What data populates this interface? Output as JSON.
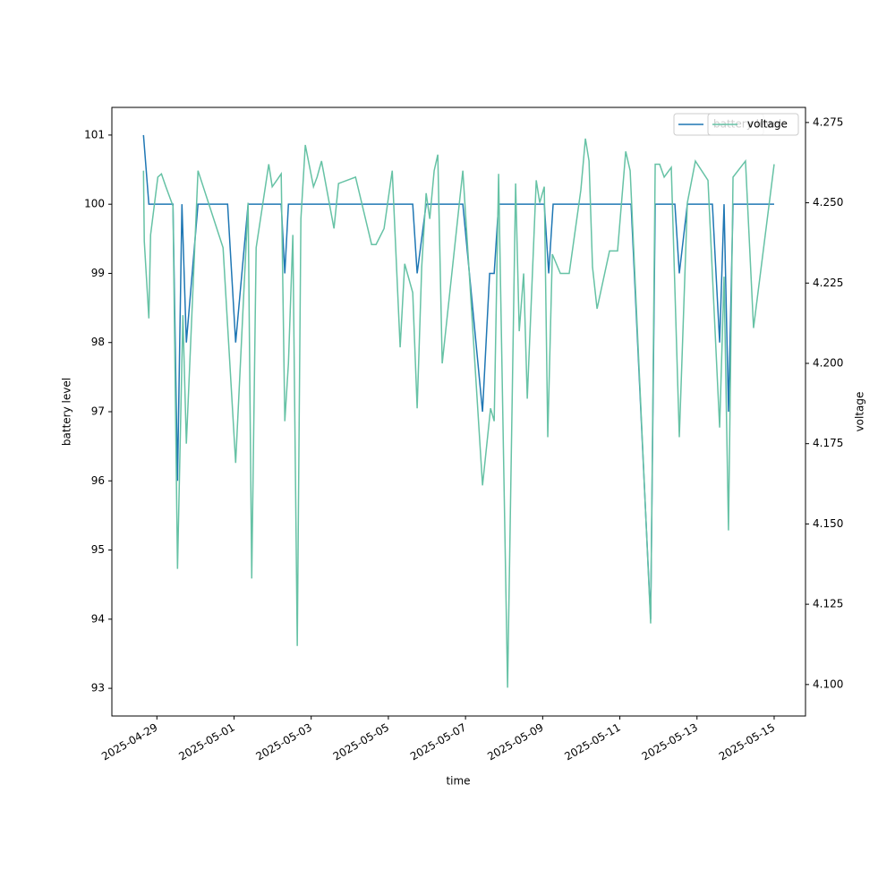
{
  "chart_data": {
    "type": "line",
    "xlabel": "time",
    "ylabel": "battery level",
    "y2label": "voltage",
    "xlim": [
      "2025-04-27T20:00",
      "2025-05-15T19:30"
    ],
    "xticks": [
      "2025-04-29",
      "2025-05-01",
      "2025-05-03",
      "2025-05-05",
      "2025-05-07",
      "2025-05-09",
      "2025-05-11",
      "2025-05-13",
      "2025-05-15"
    ],
    "ylim": [
      92.6,
      101.4
    ],
    "yticks": [
      93,
      94,
      95,
      96,
      97,
      98,
      99,
      100,
      101
    ],
    "y2lim": [
      4.0902,
      4.2797
    ],
    "y2ticks": [
      {
        "value": 4.1,
        "label": "4.100"
      },
      {
        "value": 4.125,
        "label": "4.125"
      },
      {
        "value": 4.15,
        "label": "4.150"
      },
      {
        "value": 4.175,
        "label": "4.175"
      },
      {
        "value": 4.2,
        "label": "4.200"
      },
      {
        "value": 4.225,
        "label": "4.225"
      },
      {
        "value": 4.25,
        "label": "4.250"
      },
      {
        "value": 4.275,
        "label": "4.275"
      }
    ],
    "legend": "upper right",
    "series": [
      {
        "name": "battery level",
        "color": "#1f77b4",
        "axis": "y",
        "x": [
          "2025-04-28T15:40",
          "2025-04-28T19:00",
          "2025-04-29T10:00",
          "2025-04-29T12:50",
          "2025-04-29T15:35",
          "2025-04-29T18:20",
          "2025-04-30T01:35",
          "2025-04-30T20:00",
          "2025-05-01T01:00",
          "2025-05-01T08:45",
          "2025-05-01T13:45",
          "2025-05-02T05:20",
          "2025-05-02T07:35",
          "2025-05-02T09:50",
          "2025-05-02T12:35",
          "2025-05-05T15:10",
          "2025-05-05T17:55",
          "2025-05-05T23:30",
          "2025-05-06T22:20",
          "2025-05-07T10:35",
          "2025-05-07T15:00",
          "2025-05-07T17:50",
          "2025-05-07T20:35",
          "2025-05-09T01:00",
          "2025-05-09T03:45",
          "2025-05-09T06:30",
          "2025-05-11T07:00",
          "2025-05-11T19:10",
          "2025-05-11T22:00",
          "2025-05-12T10:15",
          "2025-05-12T13:00",
          "2025-05-12T18:00",
          "2025-05-13T09:35",
          "2025-05-13T14:05",
          "2025-05-13T16:50",
          "2025-05-13T19:35",
          "2025-05-13T22:25",
          "2025-05-15T00:00"
        ],
        "values": [
          101,
          100,
          100,
          96,
          100,
          98,
          100,
          100,
          98,
          100,
          100,
          100,
          99,
          100,
          100,
          100,
          99,
          100,
          100,
          97,
          99,
          99,
          100,
          100,
          99,
          100,
          100,
          94,
          100,
          100,
          99,
          100,
          100,
          98,
          100,
          97,
          100,
          100
        ]
      },
      {
        "name": "voltage",
        "color": "#66c2a5",
        "axis": "y2",
        "x": [
          "2025-04-28T15:40",
          "2025-04-28T16:10",
          "2025-04-28T19:00",
          "2025-04-28T20:05",
          "2025-04-29T00:35",
          "2025-04-29T02:50",
          "2025-04-29T05:35",
          "2025-04-29T10:00",
          "2025-04-29T12:50",
          "2025-04-29T16:10",
          "2025-04-29T18:20",
          "2025-04-29T21:45",
          "2025-04-30T01:35",
          "2025-04-30T17:10",
          "2025-05-01T01:00",
          "2025-05-01T08:45",
          "2025-05-01T11:00",
          "2025-05-01T13:45",
          "2025-05-01T21:35",
          "2025-05-01T23:45",
          "2025-05-02T02:35",
          "2025-05-02T05:20",
          "2025-05-02T07:35",
          "2025-05-02T09:50",
          "2025-05-02T12:35",
          "2025-05-02T15:20",
          "2025-05-02T17:35",
          "2025-05-02T20:20",
          "2025-05-03T01:25",
          "2025-05-03T03:40",
          "2025-05-03T06:25",
          "2025-05-03T14:10",
          "2025-05-03T17:00",
          "2025-05-04T03:35",
          "2025-05-04T13:35",
          "2025-05-04T16:20",
          "2025-05-04T21:20",
          "2025-05-05T02:25",
          "2025-05-05T07:20",
          "2025-05-05T10:10",
          "2025-05-05T15:10",
          "2025-05-05T17:55",
          "2025-05-05T20:45",
          "2025-05-05T23:30",
          "2025-05-06T01:45",
          "2025-05-06T04:30",
          "2025-05-06T06:45",
          "2025-05-06T09:30",
          "2025-05-06T22:20",
          "2025-05-07T10:35",
          "2025-05-07T15:35",
          "2025-05-07T17:50",
          "2025-05-07T20:35",
          "2025-05-08T02:10",
          "2025-05-08T07:10",
          "2025-05-08T09:25",
          "2025-05-08T12:10",
          "2025-05-08T14:25",
          "2025-05-08T20:00",
          "2025-05-08T22:10",
          "2025-05-09T01:00",
          "2025-05-09T03:10",
          "2025-05-09T06:00",
          "2025-05-09T11:00",
          "2025-05-09T16:30",
          "2025-05-09T23:45",
          "2025-05-10T02:35",
          "2025-05-10T04:50",
          "2025-05-10T07:00",
          "2025-05-10T09:50",
          "2025-05-10T17:35",
          "2025-05-10T22:35",
          "2025-05-11T03:40",
          "2025-05-11T06:25",
          "2025-05-11T19:10",
          "2025-05-11T22:00",
          "2025-05-12T00:45",
          "2025-05-12T03:35",
          "2025-05-12T08:00",
          "2025-05-12T13:00",
          "2025-05-12T18:00",
          "2025-05-12T23:00",
          "2025-05-13T06:50",
          "2025-05-13T14:05",
          "2025-05-13T16:50",
          "2025-05-13T19:35",
          "2025-05-13T22:25",
          "2025-05-14T06:10",
          "2025-05-14T11:10",
          "2025-05-15T00:00"
        ],
        "values": [
          4.26,
          4.238,
          4.214,
          4.24,
          4.258,
          4.259,
          4.255,
          4.249,
          4.136,
          4.215,
          4.175,
          4.215,
          4.26,
          4.236,
          4.169,
          4.25,
          4.133,
          4.236,
          4.262,
          4.255,
          4.257,
          4.259,
          4.182,
          4.2,
          4.24,
          4.112,
          4.245,
          4.268,
          4.255,
          4.258,
          4.263,
          4.242,
          4.256,
          4.258,
          4.237,
          4.237,
          4.242,
          4.26,
          4.205,
          4.231,
          4.222,
          4.186,
          4.23,
          4.253,
          4.245,
          4.26,
          4.265,
          4.2,
          4.26,
          4.162,
          4.186,
          4.182,
          4.259,
          4.099,
          4.256,
          4.21,
          4.228,
          4.189,
          4.257,
          4.25,
          4.255,
          4.177,
          4.234,
          4.228,
          4.228,
          4.254,
          4.27,
          4.263,
          4.23,
          4.217,
          4.235,
          4.235,
          4.266,
          4.26,
          4.119,
          4.262,
          4.262,
          4.258,
          4.261,
          4.177,
          4.25,
          4.263,
          4.257,
          4.18,
          4.227,
          4.148,
          4.258,
          4.263,
          4.211,
          4.262
        ]
      }
    ]
  }
}
